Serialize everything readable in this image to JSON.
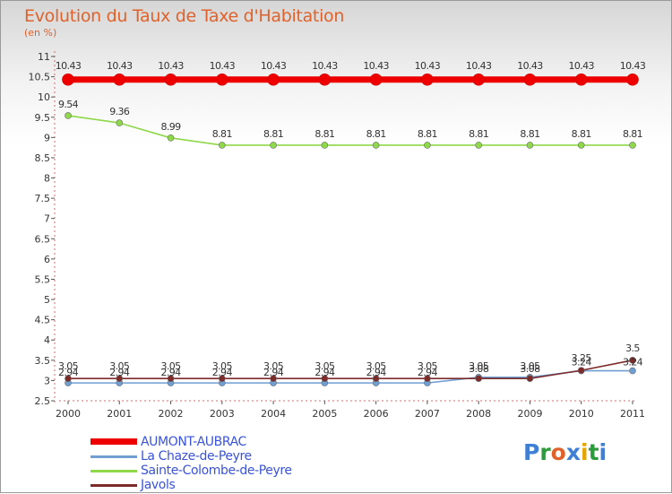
{
  "title": "Evolution du Taux de Taxe d'Habitation",
  "subtitle": "(en %)",
  "logo": {
    "text": "Proxiti",
    "letters": [
      {
        "ch": "P",
        "color": "#3f7fd6"
      },
      {
        "ch": "r",
        "color": "#2e9a3e"
      },
      {
        "ch": "o",
        "color": "#e0622a"
      },
      {
        "ch": "x",
        "color": "#3f7fd6"
      },
      {
        "ch": "i",
        "color": "#e6a400"
      },
      {
        "ch": "t",
        "color": "#2e9a3e"
      },
      {
        "ch": "i",
        "color": "#3f7fd6"
      }
    ]
  },
  "chart_data": {
    "type": "line",
    "x": [
      "2000",
      "2001",
      "2002",
      "2003",
      "2004",
      "2005",
      "2006",
      "2007",
      "2008",
      "2009",
      "2010",
      "2011"
    ],
    "ylim": [
      2.5,
      11
    ],
    "ytick_step": 0.5,
    "yticks": [
      "2.5",
      "3",
      "3.5",
      "4",
      "4.5",
      "5",
      "5.5",
      "6",
      "6.5",
      "7",
      "7.5",
      "8",
      "8.5",
      "9",
      "9.5",
      "10",
      "10.5",
      "11"
    ],
    "grid": false,
    "legend_position": "bottom-left",
    "series": [
      {
        "name": "AUMONT-AUBRAC",
        "color": "#ee0000",
        "values": [
          10.43,
          10.43,
          10.43,
          10.43,
          10.43,
          10.43,
          10.43,
          10.43,
          10.43,
          10.43,
          10.43,
          10.43
        ],
        "labels": [
          "10.43",
          "10.43",
          "10.43",
          "10.43",
          "10.43",
          "10.43",
          "10.43",
          "10.43",
          "10.43",
          "10.43",
          "10.43",
          "10.43"
        ]
      },
      {
        "name": "La Chaze-de-Peyre",
        "color": "#6f9ed2",
        "values": [
          2.94,
          2.94,
          2.94,
          2.94,
          2.94,
          2.94,
          2.94,
          2.94,
          3.08,
          3.08,
          3.24,
          3.24
        ],
        "labels": [
          "2.94",
          "2.94",
          "2.94",
          "2.94",
          "2.94",
          "2.94",
          "2.94",
          "2.94",
          "3.08",
          "3.08",
          "3.24",
          "3.24"
        ]
      },
      {
        "name": "Sainte-Colombe-de-Peyre",
        "color": "#8ed84a",
        "values": [
          9.54,
          9.36,
          8.99,
          8.81,
          8.81,
          8.81,
          8.81,
          8.81,
          8.81,
          8.81,
          8.81,
          8.81
        ],
        "labels": [
          "9.54",
          "9.36",
          "8.99",
          "8.81",
          "8.81",
          "8.81",
          "8.81",
          "8.81",
          "8.81",
          "8.81",
          "8.81",
          "8.81"
        ]
      },
      {
        "name": "Javols",
        "color": "#7d2a2a",
        "values": [
          3.05,
          3.05,
          3.05,
          3.05,
          3.05,
          3.05,
          3.05,
          3.05,
          3.05,
          3.05,
          3.25,
          3.5
        ],
        "labels": [
          "3.05",
          "3.05",
          "3.05",
          "3.05",
          "3.05",
          "3.05",
          "3.05",
          "3.05",
          "3.05",
          "3.05",
          "3.25",
          "3.5"
        ]
      }
    ]
  }
}
